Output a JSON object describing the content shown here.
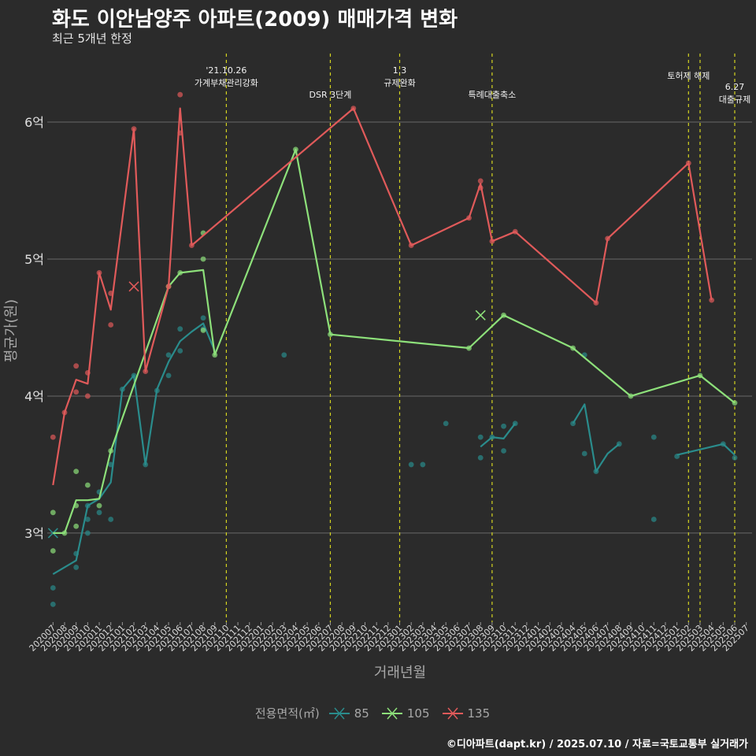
{
  "chart_data": {
    "type": "line",
    "title": "화도 이안남양주 아파트(2009) 매매가격 변화",
    "subtitle": "최근 5개년 한정",
    "xlabel": "거래년월",
    "ylabel": "평균가(원)",
    "caption": "©디아파트(dapt.kr) / 2025.07.10 / 자료=국토교통부 실거래가",
    "legend_title": "전용면적(㎡)",
    "legend_position": "bottom",
    "grid": "horizontal major",
    "ylim": [
      2.35,
      6.5
    ],
    "y_ticks": [
      {
        "value": 3,
        "label": "3억"
      },
      {
        "value": 4,
        "label": "4억"
      },
      {
        "value": 5,
        "label": "5억"
      },
      {
        "value": 6,
        "label": "6억"
      }
    ],
    "x_ticks": [
      "202007",
      "202008",
      "202009",
      "202010",
      "202011",
      "202012",
      "202101",
      "202102",
      "202103",
      "202104",
      "202105",
      "202106",
      "202107",
      "202108",
      "202109",
      "202110",
      "202111",
      "202112",
      "202201",
      "202202",
      "202203",
      "202204",
      "202205",
      "202206",
      "202207",
      "202208",
      "202209",
      "202210",
      "202211",
      "202212",
      "202301",
      "202302",
      "202303",
      "202304",
      "202305",
      "202306",
      "202307",
      "202308",
      "202309",
      "202310",
      "202311",
      "202312",
      "202401",
      "202402",
      "202403",
      "202404",
      "202405",
      "202406",
      "202407",
      "202408",
      "202409",
      "202410",
      "202411",
      "202412",
      "202501",
      "202502",
      "202503",
      "202504",
      "202505",
      "202506",
      "202507"
    ],
    "events": [
      {
        "x": "202110",
        "labels": [
          "'21.10.26",
          "가계부채관리강화"
        ],
        "level": 0
      },
      {
        "x": "202207",
        "labels": [
          "DSR 3단계"
        ],
        "level": 2
      },
      {
        "x": "202301",
        "labels": [
          "1.3",
          "규제완화"
        ],
        "level": 0
      },
      {
        "x": "202309",
        "labels": [
          "특례대출축소"
        ],
        "level": 2
      },
      {
        "x": "202502",
        "labels": [
          "토허제 해제"
        ],
        "level": 1
      },
      {
        "x": "202503",
        "labels": [],
        "level": 1
      },
      {
        "x": "202506",
        "labels": [
          "6.27",
          "대출규제"
        ],
        "level": 3
      }
    ],
    "series": [
      {
        "name": "85",
        "color": "#2a8c8c",
        "line": [
          [
            "202007",
            2.7
          ],
          [
            "202009",
            2.8
          ],
          [
            "202010",
            3.2
          ],
          [
            "202011",
            3.25
          ],
          [
            "202012",
            3.37
          ],
          [
            "202101",
            4.05
          ],
          [
            "202102",
            4.15
          ],
          [
            "202103",
            3.5
          ],
          [
            "202104",
            4.05
          ],
          [
            "202105",
            4.25
          ],
          [
            "202106",
            4.4
          ],
          [
            "202107",
            4.47
          ],
          [
            "202108",
            4.53
          ],
          [
            "202109",
            4.33
          ],
          null,
          [
            "202308",
            3.63
          ],
          [
            "202309",
            3.7
          ],
          [
            "202310",
            3.69
          ],
          [
            "202311",
            3.8
          ],
          null,
          [
            "202404",
            3.8
          ],
          [
            "202405",
            3.94
          ],
          [
            "202406",
            3.45
          ],
          [
            "202407",
            3.58
          ],
          [
            "202408",
            3.65
          ],
          null,
          [
            "202501",
            3.57
          ],
          [
            "202505",
            3.65
          ],
          [
            "202506",
            3.57
          ]
        ],
        "points": [
          [
            "202007",
            2.48
          ],
          [
            "202007",
            2.6
          ],
          [
            "202009",
            2.75
          ],
          [
            "202009",
            2.85
          ],
          [
            "202010",
            3.0
          ],
          [
            "202010",
            3.1
          ],
          [
            "202010",
            3.2
          ],
          [
            "202011",
            3.15
          ],
          [
            "202011",
            3.3
          ],
          [
            "202012",
            3.1
          ],
          [
            "202012",
            3.5
          ],
          [
            "202101",
            4.05
          ],
          [
            "202102",
            4.15
          ],
          [
            "202103",
            3.5
          ],
          [
            "202104",
            4.04
          ],
          [
            "202105",
            4.15
          ],
          [
            "202105",
            4.3
          ],
          [
            "202106",
            4.33
          ],
          [
            "202106",
            4.49
          ],
          [
            "202108",
            4.49
          ],
          [
            "202108",
            4.57
          ],
          [
            "202203",
            4.3
          ],
          [
            "202302",
            3.5
          ],
          [
            "202303",
            3.5
          ],
          [
            "202305",
            3.8
          ],
          [
            "202308",
            3.55
          ],
          [
            "202308",
            3.7
          ],
          [
            "202309",
            3.7
          ],
          [
            "202310",
            3.6
          ],
          [
            "202310",
            3.78
          ],
          [
            "202311",
            3.8
          ],
          [
            "202404",
            3.8
          ],
          [
            "202405",
            3.58
          ],
          [
            "202405",
            4.3
          ],
          [
            "202406",
            3.45
          ],
          [
            "202408",
            3.65
          ],
          [
            "202411",
            3.7
          ],
          [
            "202411",
            3.1
          ],
          [
            "202501",
            3.56
          ],
          [
            "202505",
            3.65
          ],
          [
            "202506",
            3.55
          ]
        ],
        "cancelled": [
          [
            "202007",
            3.0
          ]
        ]
      },
      {
        "name": "105",
        "color": "#8de07a",
        "line": [
          [
            "202007",
            3.0
          ],
          [
            "202008",
            3.0
          ],
          [
            "202009",
            3.24
          ],
          [
            "202010",
            3.24
          ],
          [
            "202011",
            3.25
          ],
          [
            "202012",
            3.6
          ],
          [
            "202105",
            4.8
          ],
          [
            "202106",
            4.9
          ],
          [
            "202108",
            4.92
          ],
          [
            "202109",
            4.3
          ],
          [
            "202204",
            5.8
          ],
          [
            "202207",
            4.45
          ],
          [
            "202307",
            4.35
          ],
          [
            "202310",
            4.59
          ],
          [
            "202404",
            4.35
          ],
          [
            "202409",
            4.0
          ],
          [
            "202503",
            4.15
          ],
          [
            "202506",
            3.95
          ]
        ],
        "points": [
          [
            "202007",
            2.87
          ],
          [
            "202007",
            3.15
          ],
          [
            "202008",
            3.0
          ],
          [
            "202009",
            3.05
          ],
          [
            "202009",
            3.2
          ],
          [
            "202009",
            3.45
          ],
          [
            "202010",
            3.35
          ],
          [
            "202011",
            3.2
          ],
          [
            "202012",
            3.6
          ],
          [
            "202105",
            4.8
          ],
          [
            "202106",
            4.9
          ],
          [
            "202108",
            4.48
          ],
          [
            "202108",
            5.0
          ],
          [
            "202108",
            5.19
          ],
          [
            "202109",
            4.3
          ],
          [
            "202204",
            5.8
          ],
          [
            "202207",
            4.45
          ],
          [
            "202307",
            4.35
          ],
          [
            "202310",
            4.59
          ],
          [
            "202404",
            4.35
          ],
          [
            "202409",
            4.0
          ],
          [
            "202503",
            4.15
          ],
          [
            "202506",
            3.95
          ]
        ],
        "cancelled": [
          [
            "202308",
            4.59
          ]
        ]
      },
      {
        "name": "135",
        "color": "#e05a5a",
        "line": [
          [
            "202007",
            3.35
          ],
          [
            "202008",
            3.88
          ],
          [
            "202009",
            4.12
          ],
          [
            "202010",
            4.09
          ],
          [
            "202011",
            4.9
          ],
          [
            "202012",
            4.63
          ],
          [
            "202102",
            5.95
          ],
          [
            "202103",
            4.18
          ],
          [
            "202105",
            4.8
          ],
          [
            "202106",
            6.1
          ],
          [
            "202107",
            5.1
          ],
          [
            "202209",
            6.1
          ],
          [
            "202302",
            5.1
          ],
          [
            "202307",
            5.3
          ],
          [
            "202308",
            5.55
          ],
          [
            "202309",
            5.13
          ],
          [
            "202311",
            5.2
          ],
          [
            "202406",
            4.68
          ],
          [
            "202407",
            5.15
          ],
          [
            "202502",
            5.7
          ],
          [
            "202504",
            4.7
          ]
        ],
        "points": [
          [
            "202007",
            3.7
          ],
          [
            "202008",
            3.88
          ],
          [
            "202009",
            4.03
          ],
          [
            "202009",
            4.22
          ],
          [
            "202010",
            4.0
          ],
          [
            "202010",
            4.17
          ],
          [
            "202011",
            4.9
          ],
          [
            "202012",
            4.52
          ],
          [
            "202012",
            4.75
          ],
          [
            "202102",
            5.95
          ],
          [
            "202103",
            4.18
          ],
          [
            "202105",
            4.8
          ],
          [
            "202106",
            6.2
          ],
          [
            "202106",
            5.92
          ],
          [
            "202107",
            5.1
          ],
          [
            "202209",
            6.1
          ],
          [
            "202302",
            5.1
          ],
          [
            "202307",
            5.3
          ],
          [
            "202308",
            5.57
          ],
          [
            "202308",
            5.52
          ],
          [
            "202309",
            5.13
          ],
          [
            "202311",
            5.2
          ],
          [
            "202406",
            4.68
          ],
          [
            "202407",
            5.15
          ],
          [
            "202502",
            5.7
          ],
          [
            "202504",
            4.7
          ]
        ],
        "cancelled": [
          [
            "202102",
            4.8
          ]
        ]
      }
    ]
  }
}
